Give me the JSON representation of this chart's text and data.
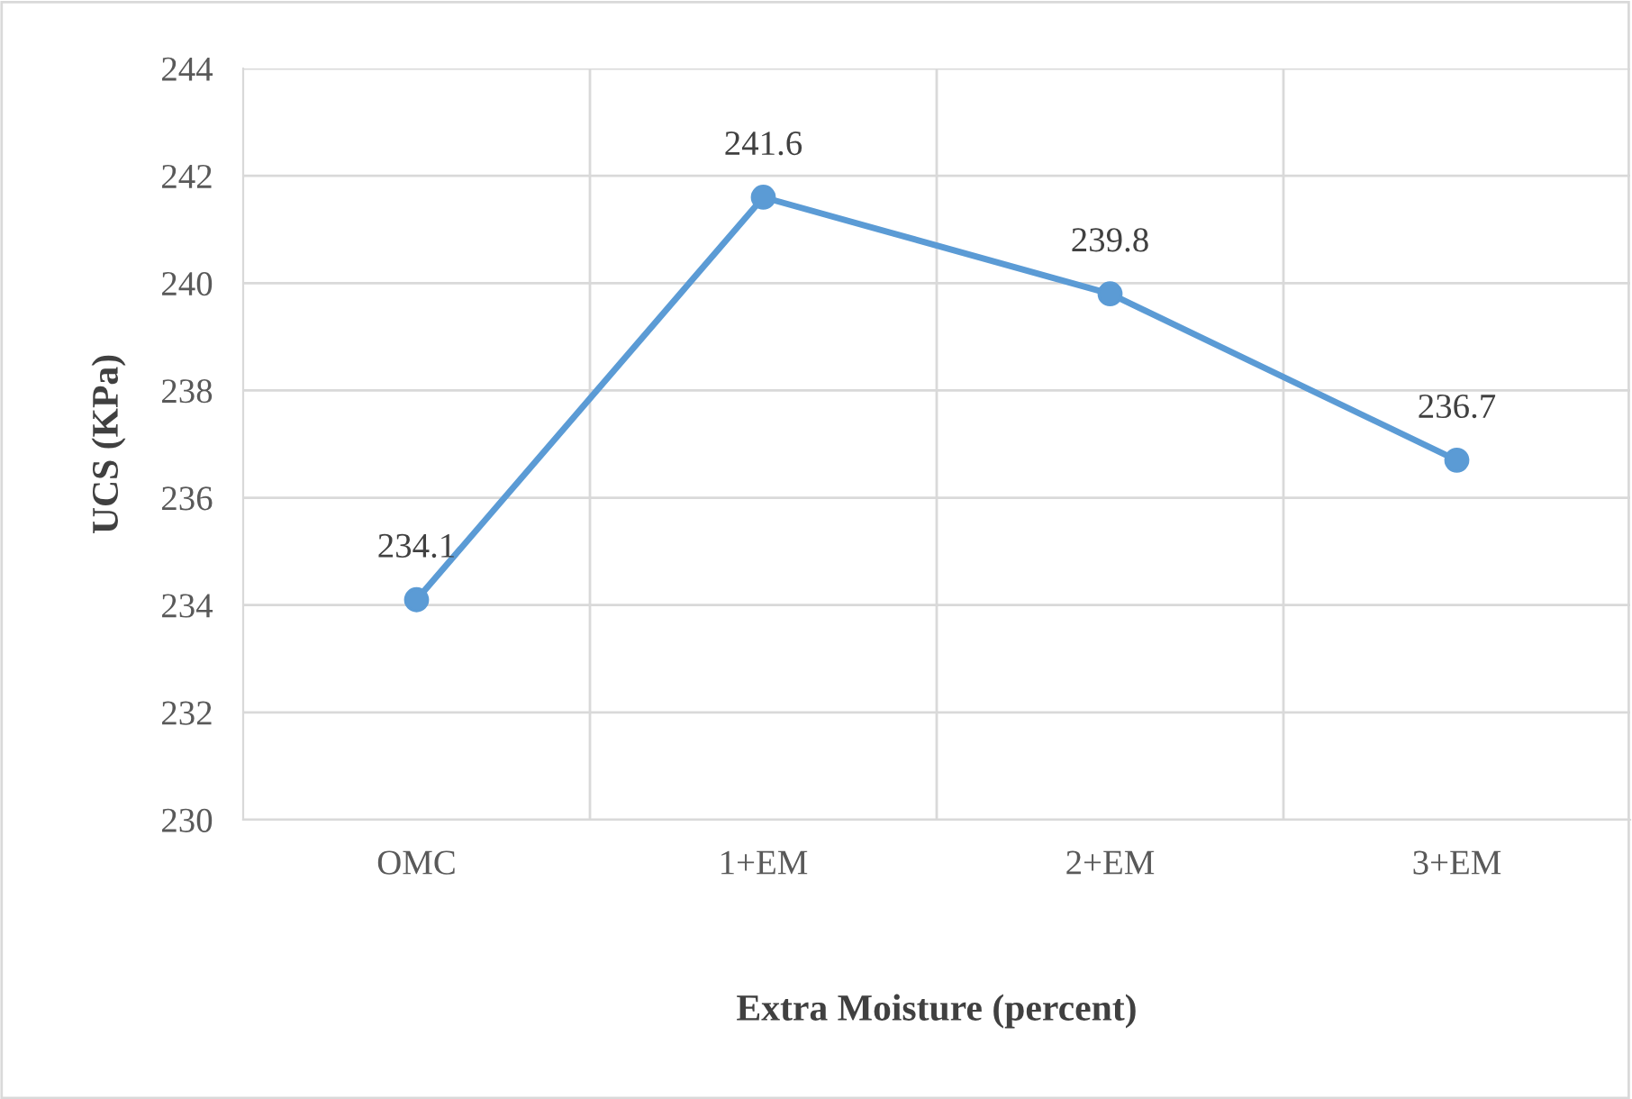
{
  "chart_data": {
    "type": "line",
    "xlabel": "Extra Moisture (percent)",
    "ylabel": "UCS (KPa)",
    "categories": [
      "OMC",
      "1+EM",
      "2+EM",
      "3+EM"
    ],
    "series": [
      {
        "color": "#5b9bd5",
        "values": [
          234.1,
          241.6,
          239.8,
          236.7
        ]
      }
    ],
    "ylim": [
      230,
      244
    ],
    "yticks": [
      230,
      232,
      234,
      236,
      238,
      240,
      242,
      244
    ],
    "grid": true,
    "marker": "circle",
    "line_style": "solid",
    "data_labels": true
  }
}
